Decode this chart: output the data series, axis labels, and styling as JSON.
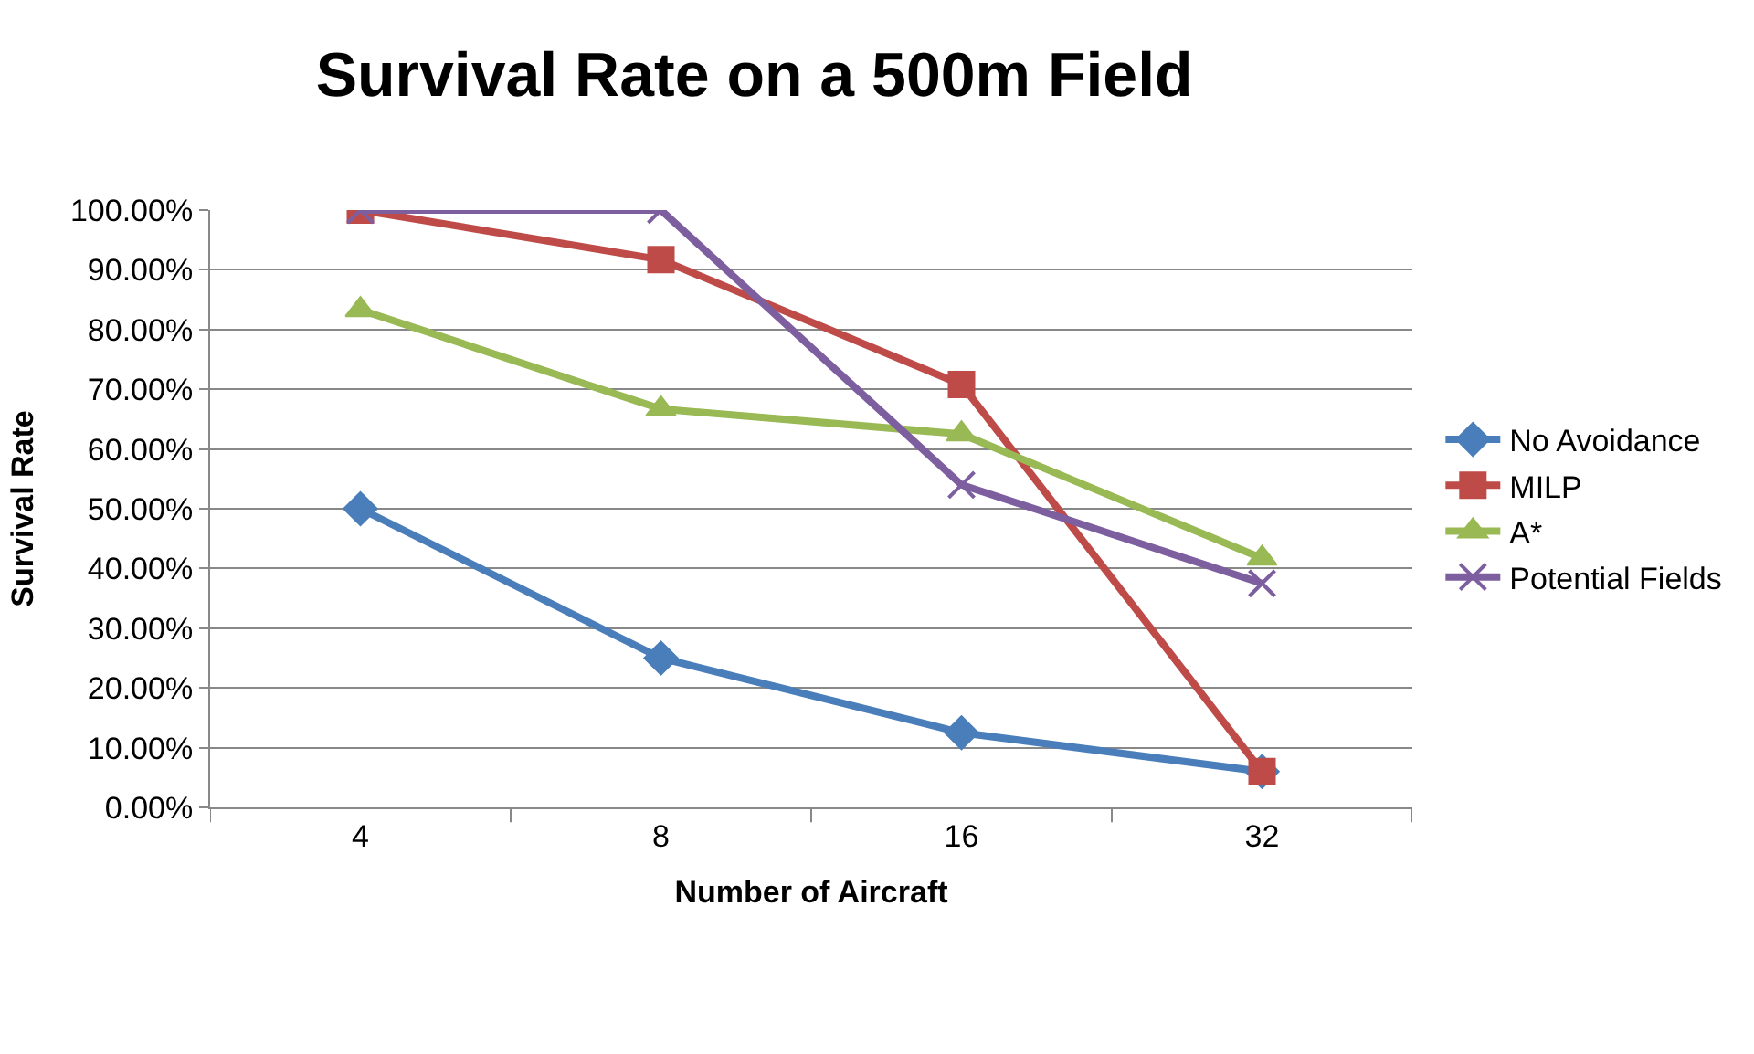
{
  "chart_data": {
    "type": "line",
    "title": "Survival Rate on a 500m Field",
    "xlabel": "Number of Aircraft",
    "ylabel": "Survival Rate",
    "categories": [
      "4",
      "8",
      "16",
      "32"
    ],
    "series": [
      {
        "name": "No Avoidance",
        "color": "#4a7ebb",
        "marker": "diamond",
        "values": [
          50,
          25,
          12.5,
          6
        ]
      },
      {
        "name": "MILP",
        "color": "#be4b48",
        "marker": "square",
        "values": [
          100,
          91.7,
          70.8,
          6
        ]
      },
      {
        "name": "A*",
        "color": "#98b954",
        "marker": "triangle",
        "values": [
          83.3,
          66.7,
          62.5,
          41.7
        ]
      },
      {
        "name": "Potential Fields",
        "color": "#7d5fa0",
        "marker": "cross",
        "values": [
          100,
          100,
          54,
          37.5
        ]
      }
    ],
    "ylim": [
      0,
      100
    ],
    "yticks": [
      {
        "value": 0,
        "label": "0.00%"
      },
      {
        "value": 10,
        "label": "10.00%"
      },
      {
        "value": 20,
        "label": "20.00%"
      },
      {
        "value": 30,
        "label": "30.00%"
      },
      {
        "value": 40,
        "label": "40.00%"
      },
      {
        "value": 50,
        "label": "50.00%"
      },
      {
        "value": 60,
        "label": "60.00%"
      },
      {
        "value": 70,
        "label": "70.00%"
      },
      {
        "value": 80,
        "label": "80.00%"
      },
      {
        "value": 90,
        "label": "90.00%"
      },
      {
        "value": 100,
        "label": "100.00%"
      }
    ],
    "grid": "y",
    "legend": "right",
    "line_style": "solid"
  }
}
